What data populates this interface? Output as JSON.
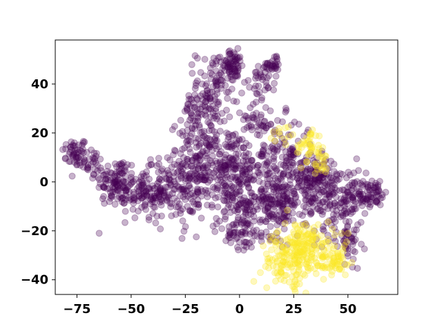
{
  "chart_data": {
    "type": "scatter",
    "title": "",
    "xlabel": "",
    "ylabel": "",
    "xlim": [
      -85,
      73
    ],
    "ylim": [
      -46,
      58
    ],
    "x_ticks": [
      -75,
      -50,
      -25,
      0,
      25,
      50
    ],
    "y_ticks": [
      -40,
      -20,
      0,
      20,
      40
    ],
    "x_tick_labels": [
      "−75",
      "−50",
      "−25",
      "0",
      "25",
      "50"
    ],
    "y_tick_labels": [
      "−40",
      "−20",
      "0",
      "20",
      "40"
    ],
    "grid": false,
    "legend": "none",
    "marker_alpha": 0.3,
    "series": [
      {
        "color": "#440154",
        "clusters": [
          {
            "cx": -76,
            "cy": 12,
            "sx": 3,
            "sy": 3,
            "n": 45
          },
          {
            "cx": -68,
            "cy": 8,
            "sx": 3,
            "sy": 3,
            "n": 30
          },
          {
            "cx": -57,
            "cy": 0,
            "sx": 5,
            "sy": 5,
            "n": 110
          },
          {
            "cx": -45,
            "cy": -5,
            "sx": 5,
            "sy": 5,
            "n": 90
          },
          {
            "cx": -32,
            "cy": -3,
            "sx": 6,
            "sy": 7,
            "n": 110
          },
          {
            "cx": -20,
            "cy": 5,
            "sx": 6,
            "sy": 10,
            "n": 150
          },
          {
            "cx": -18,
            "cy": 30,
            "sx": 4,
            "sy": 5,
            "n": 70
          },
          {
            "cx": -10,
            "cy": 40,
            "sx": 5,
            "sy": 7,
            "n": 90
          },
          {
            "cx": -3,
            "cy": 48,
            "sx": 3,
            "sy": 3,
            "n": 50
          },
          {
            "cx": -5,
            "cy": 5,
            "sx": 8,
            "sy": 9,
            "n": 260
          },
          {
            "cx": 0,
            "cy": -17,
            "sx": 5,
            "sy": 6,
            "n": 90
          },
          {
            "cx": 12,
            "cy": 42,
            "sx": 3,
            "sy": 4,
            "n": 40
          },
          {
            "cx": 16,
            "cy": 49,
            "sx": 2,
            "sy": 2,
            "n": 20
          },
          {
            "cx": 15,
            "cy": -8,
            "sx": 6,
            "sy": 7,
            "n": 170
          },
          {
            "cx": 20,
            "cy": 10,
            "sx": 7,
            "sy": 8,
            "n": 130
          },
          {
            "cx": 35,
            "cy": 2,
            "sx": 5,
            "sy": 4,
            "n": 110
          },
          {
            "cx": 45,
            "cy": -8,
            "sx": 6,
            "sy": 7,
            "n": 130
          },
          {
            "cx": 50,
            "cy": -23,
            "sx": 3,
            "sy": 5,
            "n": 45
          },
          {
            "cx": 58,
            "cy": -5,
            "sx": 4,
            "sy": 3,
            "n": 60
          },
          {
            "cx": 63,
            "cy": -3,
            "sx": 2,
            "sy": 2,
            "n": 18
          },
          {
            "cx": 8,
            "cy": 25,
            "sx": 4,
            "sy": 5,
            "n": 35
          },
          {
            "cx": 28,
            "cy": -10,
            "sx": 5,
            "sy": 6,
            "n": 60
          }
        ]
      },
      {
        "color": "#fde725",
        "clusters": [
          {
            "cx": 30,
            "cy": -28,
            "sx": 7,
            "sy": 6,
            "n": 200
          },
          {
            "cx": 20,
            "cy": -32,
            "sx": 5,
            "sy": 5,
            "n": 60
          },
          {
            "cx": 45,
            "cy": -32,
            "sx": 4,
            "sy": 3,
            "n": 45
          },
          {
            "cx": 32,
            "cy": 14,
            "sx": 3,
            "sy": 4,
            "n": 40
          },
          {
            "cx": 38,
            "cy": 8,
            "sx": 2,
            "sy": 3,
            "n": 18
          },
          {
            "cx": 20,
            "cy": 20,
            "sx": 3,
            "sy": 3,
            "n": 12
          }
        ]
      }
    ]
  }
}
